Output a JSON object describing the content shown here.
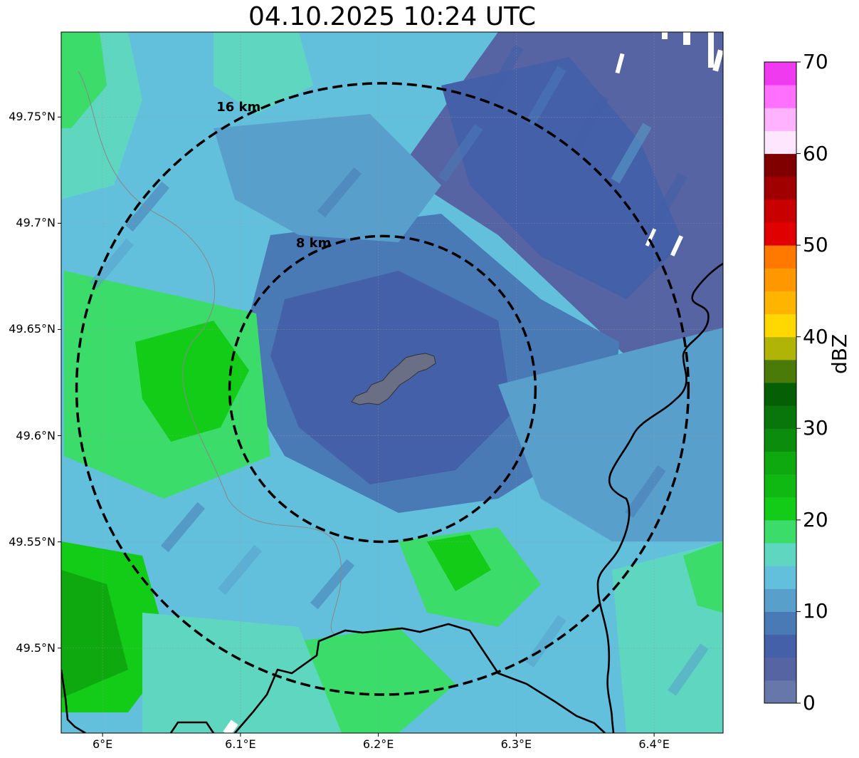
{
  "title": "04.10.2025 10:24 UTC",
  "map": {
    "lon_range": [
      5.97,
      6.45
    ],
    "lat_range": [
      49.46,
      49.79
    ],
    "x_ticks": [
      {
        "value": 6.0,
        "label": "6°E"
      },
      {
        "value": 6.1,
        "label": "6.1°E"
      },
      {
        "value": 6.2,
        "label": "6.2°E"
      },
      {
        "value": 6.3,
        "label": "6.3°E"
      },
      {
        "value": 6.4,
        "label": "6.4°E"
      }
    ],
    "y_ticks": [
      {
        "value": 49.75,
        "label": "49.75°N"
      },
      {
        "value": 49.7,
        "label": "49.7°N"
      },
      {
        "value": 49.65,
        "label": "49.65°N"
      },
      {
        "value": 49.6,
        "label": "49.6°N"
      },
      {
        "value": 49.55,
        "label": "49.55°N"
      },
      {
        "value": 49.5,
        "label": "49.5°N"
      }
    ],
    "range_rings": [
      {
        "label": "8 km",
        "radius_km": 8
      },
      {
        "label": "16 km",
        "radius_km": 16
      }
    ],
    "radar_center": {
      "lon": 6.203,
      "lat": 49.622
    }
  },
  "colorbar": {
    "label": "dBZ",
    "min": 0,
    "max": 70,
    "ticks": [
      "0",
      "10",
      "20",
      "30",
      "40",
      "50",
      "60",
      "70"
    ],
    "colors": [
      "#6877aa",
      "#5664a3",
      "#4460a8",
      "#4a7ab6",
      "#58a0cb",
      "#63c0dc",
      "#5ed6c0",
      "#3bdc6a",
      "#12cc18",
      "#10b812",
      "#0ea80f",
      "#0b8c0c",
      "#08760a",
      "#055f05",
      "#4a7a08",
      "#b0b406",
      "#fed800",
      "#ffb400",
      "#ff9800",
      "#ff7800",
      "#e00000",
      "#c80000",
      "#a00000",
      "#800000",
      "#ffe6ff",
      "#ffb2ff",
      "#ff70ff",
      "#f03af0"
    ]
  }
}
